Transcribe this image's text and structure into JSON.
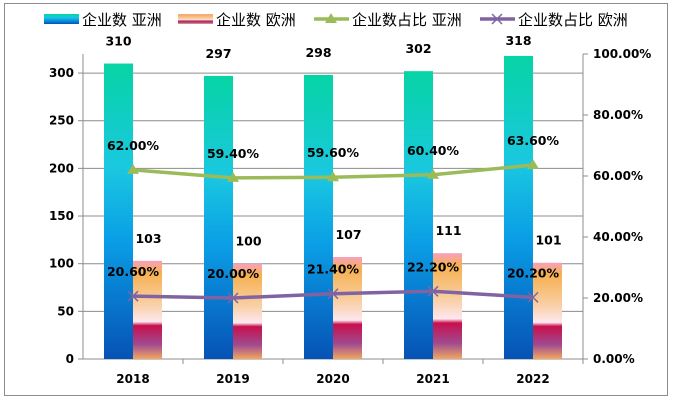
{
  "chart_data": {
    "type": "bar",
    "categories": [
      "2018",
      "2019",
      "2020",
      "2021",
      "2022"
    ],
    "series": [
      {
        "name": "企业数 亚洲",
        "type": "bar",
        "axis": "left",
        "values": [
          310,
          297,
          298,
          302,
          318
        ]
      },
      {
        "name": "企业数 欧洲",
        "type": "bar",
        "axis": "left",
        "values": [
          103,
          100,
          107,
          111,
          101
        ]
      },
      {
        "name": "企业数占比 亚洲",
        "type": "line",
        "axis": "right",
        "marker": "triangle",
        "color": "#9bbb59",
        "values": [
          62.0,
          59.4,
          59.6,
          60.4,
          63.6
        ],
        "labels": [
          "62.00%",
          "59.40%",
          "59.60%",
          "60.40%",
          "63.60%"
        ]
      },
      {
        "name": "企业数占比 欧洲",
        "type": "line",
        "axis": "right",
        "marker": "x",
        "color": "#8064a2",
        "values": [
          20.6,
          20.0,
          21.4,
          22.2,
          20.2
        ],
        "labels": [
          "20.60%",
          "20.00%",
          "21.40%",
          "22.20%",
          "20.20%"
        ]
      }
    ],
    "ylim": [
      0,
      320
    ],
    "yticks": [
      "0",
      "50",
      "100",
      "150",
      "200",
      "250",
      "300"
    ],
    "y2lim": [
      0,
      100
    ],
    "y2ticks": [
      "0.00%",
      "20.00%",
      "40.00%",
      "60.00%",
      "80.00%",
      "100.00%"
    ],
    "grid": true,
    "legend": "top"
  }
}
